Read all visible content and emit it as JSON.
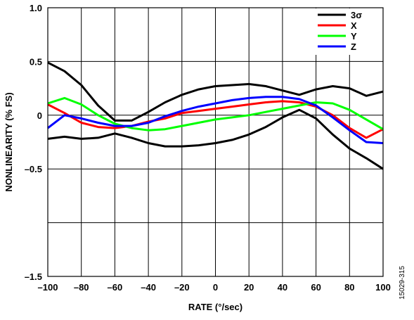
{
  "chart_data": {
    "type": "line",
    "xlabel": "RATE (°/sec)",
    "ylabel": "NONLINEARITY (% FS)",
    "xlim": [
      -100,
      100
    ],
    "ylim": [
      -1.5,
      1.0
    ],
    "x_ticks": [
      -100,
      -80,
      -60,
      -40,
      -20,
      0,
      20,
      40,
      60,
      80,
      100
    ],
    "x_tick_labels": [
      "–100",
      "–80",
      "–60",
      "–40",
      "–20",
      "0",
      "20",
      "40",
      "60",
      "80",
      "100"
    ],
    "y_ticks": [
      1.0,
      0.5,
      0,
      -0.5,
      -1.5
    ],
    "y_tick_labels": [
      "1.0",
      "0.5",
      "0",
      "–0.5",
      "–1.5"
    ],
    "grid": true,
    "legend_position": "top-right",
    "series": [
      {
        "name": "3σ",
        "color": "#000000",
        "x": [
          -100,
          -90,
          -80,
          -70,
          -60,
          -50,
          -40,
          -30,
          -20,
          -10,
          0,
          10,
          20,
          30,
          40,
          50,
          60,
          70,
          80,
          90,
          100
        ],
        "values": [
          0.49,
          0.41,
          0.28,
          0.09,
          -0.05,
          -0.05,
          0.03,
          0.12,
          0.19,
          0.24,
          0.27,
          0.28,
          0.29,
          0.27,
          0.23,
          0.19,
          0.24,
          0.27,
          0.25,
          0.18,
          0.22
        ]
      },
      {
        "name": "",
        "color": "#000000",
        "x": [
          -100,
          -90,
          -80,
          -70,
          -60,
          -50,
          -40,
          -30,
          -20,
          -10,
          0,
          10,
          20,
          30,
          40,
          50,
          60,
          70,
          80,
          90,
          100
        ],
        "values": [
          -0.22,
          -0.2,
          -0.22,
          -0.21,
          -0.17,
          -0.21,
          -0.26,
          -0.29,
          -0.29,
          -0.28,
          -0.26,
          -0.23,
          -0.18,
          -0.11,
          -0.02,
          0.05,
          -0.03,
          -0.18,
          -0.31,
          -0.4,
          -0.5
        ]
      },
      {
        "name": "X",
        "color": "#ff0000",
        "x": [
          -100,
          -90,
          -80,
          -70,
          -60,
          -50,
          -40,
          -30,
          -20,
          -10,
          0,
          10,
          20,
          30,
          40,
          50,
          60,
          70,
          80,
          90,
          100
        ],
        "values": [
          0.1,
          0.02,
          -0.07,
          -0.11,
          -0.12,
          -0.1,
          -0.06,
          -0.03,
          0.02,
          0.04,
          0.06,
          0.08,
          0.1,
          0.12,
          0.13,
          0.12,
          0.08,
          0.0,
          -0.12,
          -0.21,
          -0.13
        ]
      },
      {
        "name": "Y",
        "color": "#00ff00",
        "x": [
          -100,
          -90,
          -80,
          -70,
          -60,
          -50,
          -40,
          -30,
          -20,
          -10,
          0,
          10,
          20,
          30,
          40,
          50,
          60,
          70,
          80,
          90,
          100
        ],
        "values": [
          0.11,
          0.16,
          0.1,
          0.0,
          -0.08,
          -0.12,
          -0.14,
          -0.13,
          -0.1,
          -0.07,
          -0.04,
          -0.02,
          0.0,
          0.03,
          0.06,
          0.09,
          0.12,
          0.11,
          0.05,
          -0.04,
          -0.13
        ]
      },
      {
        "name": "Z",
        "color": "#0000ff",
        "x": [
          -100,
          -90,
          -80,
          -70,
          -60,
          -50,
          -40,
          -30,
          -20,
          -10,
          0,
          10,
          20,
          30,
          40,
          50,
          60,
          70,
          80,
          90,
          100
        ],
        "values": [
          -0.12,
          0.0,
          -0.03,
          -0.07,
          -0.1,
          -0.1,
          -0.07,
          -0.01,
          0.04,
          0.08,
          0.11,
          0.14,
          0.16,
          0.17,
          0.17,
          0.15,
          0.09,
          -0.02,
          -0.14,
          -0.25,
          -0.26
        ]
      }
    ]
  },
  "figure_id": "15029-315"
}
